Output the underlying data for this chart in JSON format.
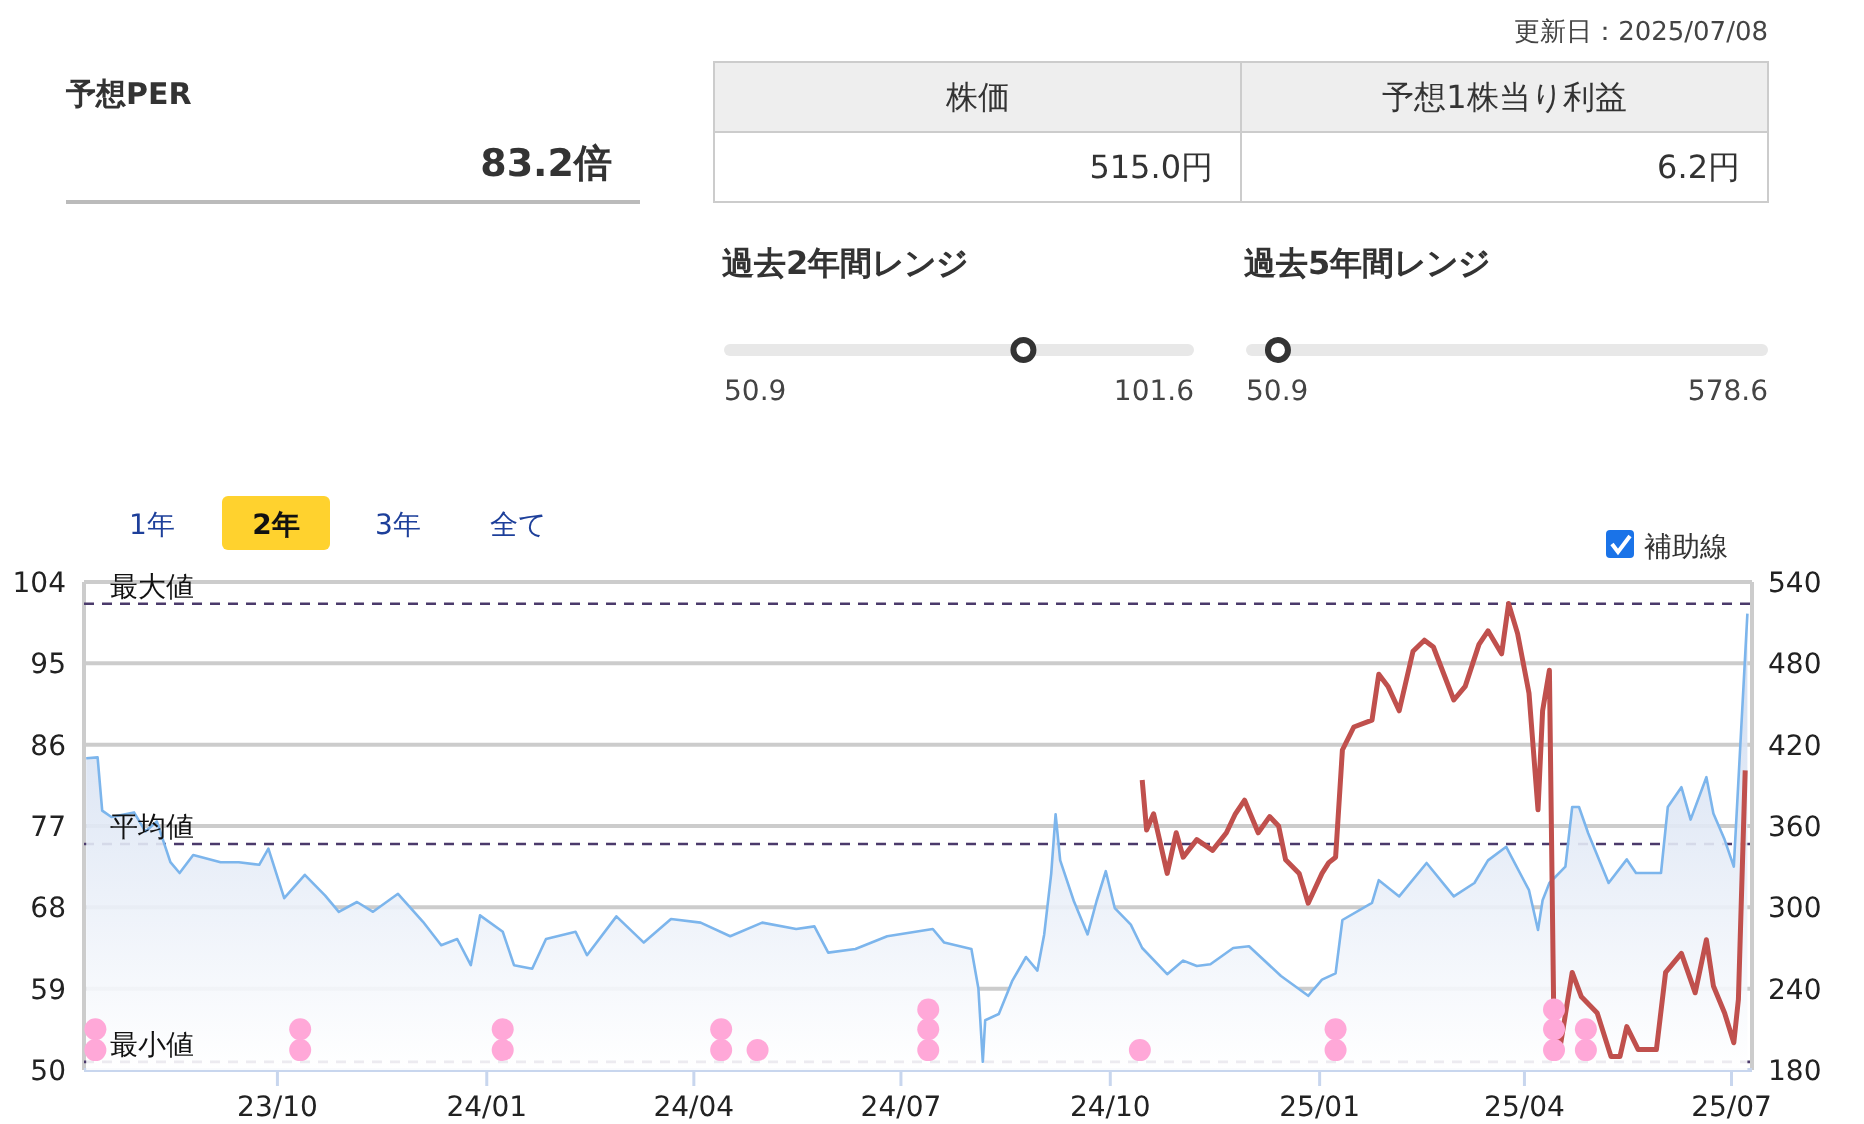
{
  "chart_data": [
    {
      "type": "other",
      "title": "予想PER",
      "annotations": [
        "83.2倍"
      ]
    },
    {
      "type": "other",
      "annotations": [
        "更新日：2025/07/08"
      ],
      "categories": [
        "株価",
        "予想1株当り利益"
      ],
      "value_labels": [
        "515.0円",
        "6.2円"
      ]
    },
    {
      "type": "other",
      "title": "過去2年間レンジ",
      "annotations": [
        "50.9",
        "101.6"
      ]
    },
    {
      "type": "other",
      "title": "過去5年間レンジ",
      "annotations": [
        "50.9",
        "578.6"
      ]
    },
    {
      "type": "line",
      "annotations": [
        "1年",
        "2年",
        "3年",
        "全て",
        "補助線"
      ],
      "xlim": [
        "2023-07-08",
        "2025-07-10"
      ],
      "xticks": [
        {
          "value": "2023-10-01",
          "label": "23/10"
        },
        {
          "value": "2024-01-01",
          "label": "24/01"
        },
        {
          "value": "2024-04-01",
          "label": "24/04"
        },
        {
          "value": "2024-07-01",
          "label": "24/07"
        },
        {
          "value": "2024-10-01",
          "label": "24/10"
        },
        {
          "value": "2025-01-01",
          "label": "25/01"
        },
        {
          "value": "2025-04-01",
          "label": "25/04"
        },
        {
          "value": "2025-07-01",
          "label": "25/07"
        }
      ],
      "ylim": [
        50,
        104
      ],
      "yticks": [
        50,
        59,
        68,
        77,
        86,
        95,
        104
      ],
      "y2lim": [
        180,
        540
      ],
      "y2ticks": [
        180,
        240,
        300,
        360,
        420,
        480,
        540
      ],
      "grid": "y",
      "ref_lines": [
        {
          "axis": "y",
          "value": 101.6,
          "label": "最大値",
          "color": "#4b3a6b",
          "line_style": "dashed"
        },
        {
          "axis": "y",
          "value": 75.0,
          "label": "平均値",
          "color": "#4b3a6b",
          "line_style": "dashed"
        },
        {
          "axis": "y",
          "value": 50.9,
          "label": "最小値",
          "color": "#4b3a6b",
          "line_style": "dashed"
        }
      ],
      "series": [
        {
          "type": "area",
          "color": "#7cb5ec",
          "axis": "y",
          "x": [
            "2023-07-09",
            "2023-07-14",
            "2023-07-16",
            "2023-07-20",
            "2023-07-30",
            "2023-08-04",
            "2023-08-09",
            "2023-08-15",
            "2023-08-19",
            "2023-08-25",
            "2023-09-06",
            "2023-09-14",
            "2023-09-23",
            "2023-09-27",
            "2023-10-04",
            "2023-10-13",
            "2023-10-22",
            "2023-10-28",
            "2023-11-05",
            "2023-11-12",
            "2023-11-23",
            "2023-12-04",
            "2023-12-12",
            "2023-12-19",
            "2023-12-25",
            "2023-12-29",
            "2024-01-08",
            "2024-01-13",
            "2024-01-21",
            "2024-01-27",
            "2024-02-09",
            "2024-02-14",
            "2024-02-27",
            "2024-03-10",
            "2024-03-22",
            "2024-04-04",
            "2024-04-17",
            "2024-05-01",
            "2024-05-16",
            "2024-05-24",
            "2024-05-30",
            "2024-06-11",
            "2024-06-25",
            "2024-07-15",
            "2024-07-20",
            "2024-08-01",
            "2024-08-04",
            "2024-08-06",
            "2024-08-07",
            "2024-08-13",
            "2024-08-19",
            "2024-08-25",
            "2024-08-30",
            "2024-09-02",
            "2024-09-05",
            "2024-09-07",
            "2024-09-09",
            "2024-09-15",
            "2024-09-21",
            "2024-09-25",
            "2024-09-29",
            "2024-10-03",
            "2024-10-10",
            "2024-10-15",
            "2024-10-26",
            "2024-11-02",
            "2024-11-08",
            "2024-11-14",
            "2024-11-24",
            "2024-12-01",
            "2024-12-15",
            "2024-12-27",
            "2025-01-02",
            "2025-01-08",
            "2025-01-11",
            "2025-01-24",
            "2025-01-27",
            "2025-02-05",
            "2025-02-17",
            "2025-03-01",
            "2025-03-10",
            "2025-03-16",
            "2025-03-24",
            "2025-04-03",
            "2025-04-07",
            "2025-04-09",
            "2025-04-12",
            "2025-04-19",
            "2025-04-22",
            "2025-04-25",
            "2025-04-29",
            "2025-05-08",
            "2025-05-16",
            "2025-05-20",
            "2025-05-31",
            "2025-06-03",
            "2025-06-09",
            "2025-06-13",
            "2025-06-20",
            "2025-06-23",
            "2025-06-28",
            "2025-07-02",
            "2025-07-08"
          ],
          "values": [
            84.5,
            84.6,
            78.7,
            78.0,
            78.5,
            76.4,
            77.5,
            73.0,
            71.8,
            73.8,
            73.0,
            73.0,
            72.7,
            74.5,
            69.0,
            71.6,
            69.3,
            67.5,
            68.6,
            67.5,
            69.5,
            66.4,
            63.8,
            64.5,
            61.6,
            67.1,
            65.3,
            61.6,
            61.2,
            64.5,
            65.3,
            62.7,
            67.0,
            64.1,
            66.7,
            66.3,
            64.8,
            66.3,
            65.6,
            65.9,
            63.0,
            63.4,
            64.8,
            65.6,
            64.1,
            63.4,
            59.0,
            50.9,
            55.5,
            56.2,
            59.9,
            62.5,
            61.0,
            65.0,
            71.7,
            78.3,
            73.2,
            68.7,
            65.0,
            68.7,
            72.0,
            67.9,
            66.1,
            63.5,
            60.6,
            62.1,
            61.5,
            61.7,
            63.5,
            63.7,
            60.4,
            58.2,
            60.0,
            60.7,
            66.6,
            68.5,
            71.0,
            69.2,
            72.9,
            69.2,
            70.7,
            73.2,
            74.7,
            69.9,
            65.5,
            68.8,
            70.7,
            72.5,
            79.1,
            79.1,
            76.2,
            70.7,
            73.3,
            71.8,
            71.8,
            79.1,
            81.3,
            77.7,
            82.4,
            78.4,
            75.5,
            72.5,
            100.5
          ]
        },
        {
          "type": "line",
          "color": "#c0504d",
          "axis": "y2",
          "x": [
            "2024-10-15",
            "2024-10-17",
            "2024-10-20",
            "2024-10-26",
            "2024-10-30",
            "2024-11-02",
            "2024-11-08",
            "2024-11-15",
            "2024-11-21",
            "2024-11-25",
            "2024-11-29",
            "2024-12-05",
            "2024-12-10",
            "2024-12-14",
            "2024-12-17",
            "2024-12-23",
            "2024-12-27",
            "2025-01-02",
            "2025-01-05",
            "2025-01-08",
            "2025-01-11",
            "2025-01-16",
            "2025-01-24",
            "2025-01-27",
            "2025-01-31",
            "2025-02-05",
            "2025-02-11",
            "2025-02-16",
            "2025-02-20",
            "2025-03-01",
            "2025-03-06",
            "2025-03-12",
            "2025-03-16",
            "2025-03-22",
            "2025-03-25",
            "2025-03-29",
            "2025-04-03",
            "2025-04-07",
            "2025-04-09",
            "2025-04-12",
            "2025-04-14",
            "2025-04-17",
            "2025-04-22",
            "2025-04-26",
            "2025-05-03",
            "2025-05-09",
            "2025-05-13",
            "2025-05-16",
            "2025-05-21",
            "2025-05-29",
            "2025-06-02",
            "2025-06-09",
            "2025-06-15",
            "2025-06-20",
            "2025-06-23",
            "2025-06-28",
            "2025-07-02",
            "2025-07-04",
            "2025-07-07"
          ],
          "values": [
            394,
            357,
            369,
            325,
            355,
            337,
            350,
            342,
            355,
            369,
            379,
            355,
            367,
            360,
            335,
            325,
            303,
            325,
            333,
            337,
            416,
            433,
            438,
            472,
            463,
            445,
            489,
            497,
            492,
            453,
            463,
            494,
            504,
            487,
            524,
            502,
            458,
            372,
            445,
            475,
            207,
            200,
            252,
            234,
            222,
            190,
            190,
            212,
            195,
            195,
            252,
            266,
            237,
            276,
            242,
            222,
            200,
            232,
            401
          ]
        },
        {
          "type": "scatter",
          "color": "#ffa8d8",
          "axis": "y",
          "marker": "circle",
          "x": [
            "2023-07-13",
            "2023-07-13",
            "2023-10-11",
            "2023-10-11",
            "2024-01-08",
            "2024-01-08",
            "2024-04-13",
            "2024-04-13",
            "2024-04-29",
            "2024-07-13",
            "2024-07-13",
            "2024-07-13",
            "2024-10-14",
            "2025-01-08",
            "2025-01-08",
            "2025-04-14",
            "2025-04-14",
            "2025-04-14",
            "2025-04-28",
            "2025-04-28"
          ],
          "values": [
            52.2,
            54.5,
            52.2,
            54.5,
            52.2,
            54.5,
            52.2,
            54.5,
            52.2,
            52.2,
            54.5,
            56.7,
            52.2,
            52.2,
            54.5,
            52.2,
            54.5,
            56.7,
            52.2,
            54.5
          ]
        }
      ]
    }
  ]
}
